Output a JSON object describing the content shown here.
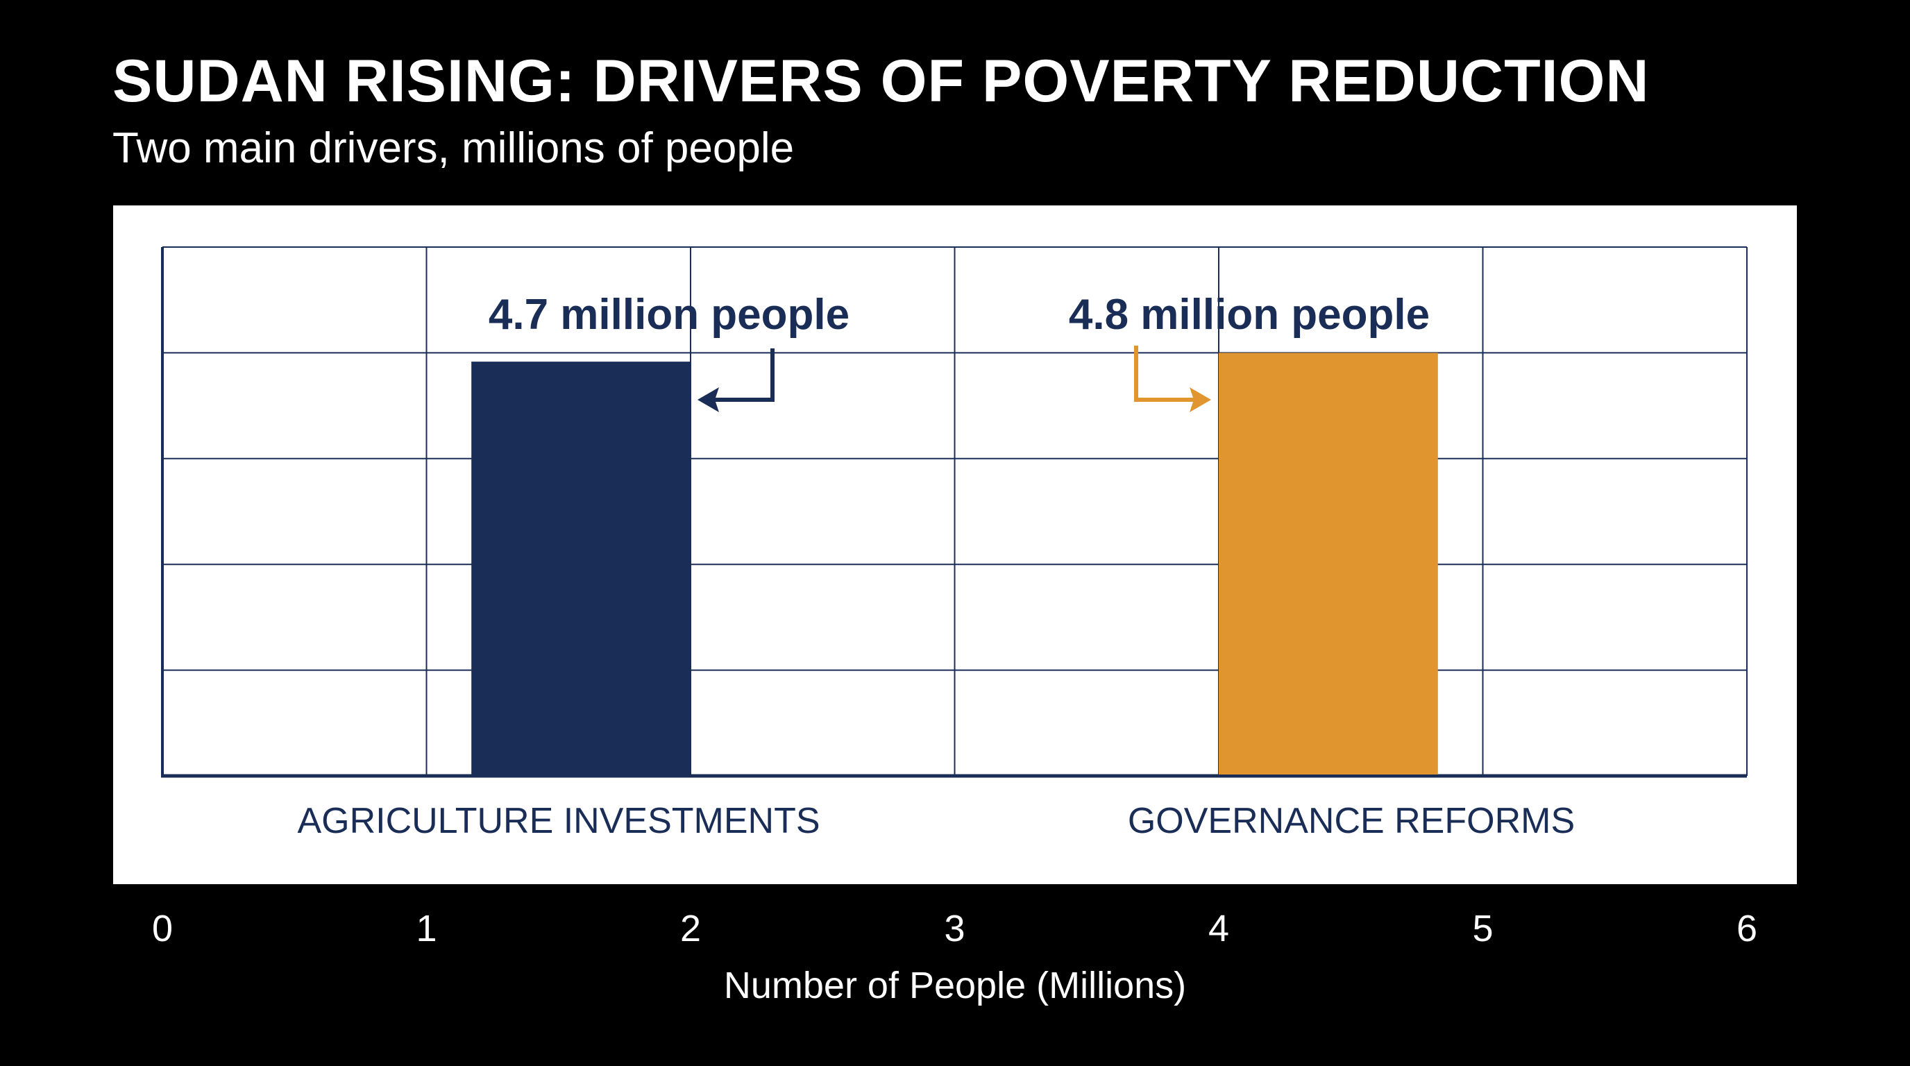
{
  "header": {
    "title": "SUDAN RISING: DRIVERS OF POVERTY REDUCTION",
    "subtitle": "Two main drivers, millions of people"
  },
  "colors": {
    "background": "#000000",
    "panel": "#ffffff",
    "navy": "#1a2d57",
    "orange": "#e0952e",
    "grid": "#1a2d57",
    "axis_text": "#ffffff"
  },
  "chart_data": {
    "type": "bar",
    "title": "SUDAN RISING: DRIVERS OF POVERTY REDUCTION",
    "subtitle": "Two main drivers, millions of people",
    "xlabel": "Number of People (Millions)",
    "ylabel": "",
    "xlim": [
      0,
      6
    ],
    "x_ticks": [
      "0",
      "1",
      "2",
      "3",
      "4",
      "5",
      "6"
    ],
    "grid": true,
    "categories": [
      "AGRICULTURE INVESTMENTS",
      "GOVERNANCE REFORMS"
    ],
    "series": [
      {
        "values": [
          4.7,
          4.8
        ],
        "colors": [
          "#1a2d57",
          "#e0952e"
        ]
      }
    ],
    "annotations": [
      "4.7 million people",
      "4.8 million people"
    ]
  }
}
